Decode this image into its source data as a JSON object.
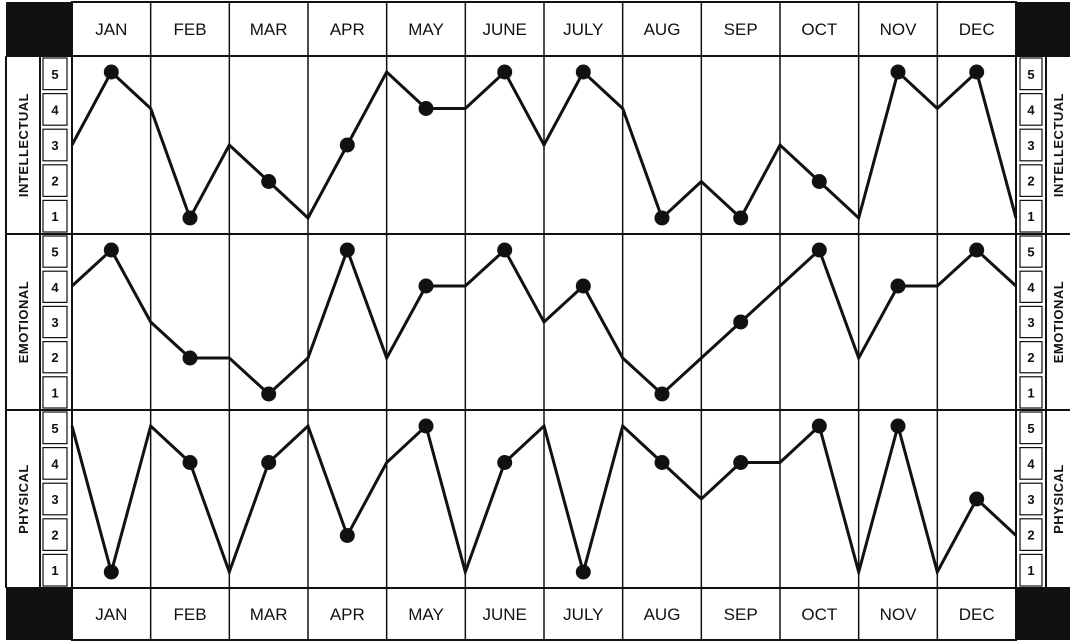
{
  "chart_data": {
    "type": "line",
    "months": [
      "JAN",
      "FEB",
      "MAR",
      "APR",
      "MAY",
      "JUNE",
      "JULY",
      "AUG",
      "SEP",
      "OCT",
      "NOV",
      "DEC"
    ],
    "x_axis": "month position, 0 = left edge of JAN, 12 = right edge of DEC",
    "yticks": [
      "1",
      "2",
      "3",
      "4",
      "5"
    ],
    "ylim": [
      1,
      5
    ],
    "grid": true,
    "series": [
      {
        "name": "INTELLECTUAL",
        "points": [
          [
            0,
            3
          ],
          [
            0.5,
            5
          ],
          [
            1,
            4
          ],
          [
            1.5,
            1
          ],
          [
            2,
            3
          ],
          [
            2.5,
            2
          ],
          [
            3,
            1
          ],
          [
            3.5,
            3
          ],
          [
            4,
            5
          ],
          [
            4.5,
            4
          ],
          [
            5,
            4
          ],
          [
            5.5,
            5
          ],
          [
            6,
            3
          ],
          [
            6.5,
            5
          ],
          [
            7,
            4
          ],
          [
            7.5,
            1
          ],
          [
            8,
            2
          ],
          [
            8.5,
            1
          ],
          [
            9,
            3
          ],
          [
            9.5,
            2
          ],
          [
            10,
            1
          ],
          [
            10.5,
            5
          ],
          [
            11,
            4
          ],
          [
            11.5,
            5
          ],
          [
            12,
            1
          ]
        ],
        "markers": [
          [
            0.5,
            5
          ],
          [
            1.5,
            1
          ],
          [
            2.5,
            2
          ],
          [
            3.5,
            3
          ],
          [
            4.5,
            4
          ],
          [
            5.5,
            5
          ],
          [
            6.5,
            5
          ],
          [
            7.5,
            1
          ],
          [
            8.5,
            1
          ],
          [
            9.5,
            2
          ],
          [
            10.5,
            5
          ],
          [
            11.5,
            5
          ]
        ]
      },
      {
        "name": "EMOTIONAL",
        "points": [
          [
            0,
            4
          ],
          [
            0.5,
            5
          ],
          [
            1,
            3
          ],
          [
            1.5,
            2
          ],
          [
            2,
            2
          ],
          [
            2.5,
            1
          ],
          [
            3,
            2
          ],
          [
            3.5,
            5
          ],
          [
            4,
            2
          ],
          [
            4.5,
            4
          ],
          [
            5,
            4
          ],
          [
            5.5,
            5
          ],
          [
            6,
            3
          ],
          [
            6.5,
            4
          ],
          [
            7,
            2
          ],
          [
            7.5,
            1
          ],
          [
            8,
            2
          ],
          [
            8.5,
            3
          ],
          [
            9,
            4
          ],
          [
            9.5,
            5
          ],
          [
            10,
            2
          ],
          [
            10.5,
            4
          ],
          [
            11,
            4
          ],
          [
            11.5,
            5
          ],
          [
            12,
            4
          ]
        ],
        "markers": [
          [
            0.5,
            5
          ],
          [
            1.5,
            2
          ],
          [
            2.5,
            1
          ],
          [
            3.5,
            5
          ],
          [
            4.5,
            4
          ],
          [
            5.5,
            5
          ],
          [
            6.5,
            4
          ],
          [
            7.5,
            1
          ],
          [
            8.5,
            3
          ],
          [
            9.5,
            5
          ],
          [
            10.5,
            4
          ],
          [
            11.5,
            5
          ]
        ]
      },
      {
        "name": "PHYSICAL",
        "points": [
          [
            0,
            5
          ],
          [
            0.5,
            1
          ],
          [
            1,
            5
          ],
          [
            1.5,
            4
          ],
          [
            2,
            1
          ],
          [
            2.5,
            4
          ],
          [
            3,
            5
          ],
          [
            3.5,
            2
          ],
          [
            4,
            4
          ],
          [
            4.5,
            5
          ],
          [
            5,
            1
          ],
          [
            5.5,
            4
          ],
          [
            6,
            5
          ],
          [
            6.5,
            1
          ],
          [
            7,
            5
          ],
          [
            7.5,
            4
          ],
          [
            8,
            3
          ],
          [
            8.5,
            4
          ],
          [
            9,
            4
          ],
          [
            9.5,
            5
          ],
          [
            10,
            1
          ],
          [
            10.5,
            5
          ],
          [
            11,
            1
          ],
          [
            11.5,
            3
          ],
          [
            12,
            2
          ]
        ],
        "markers": [
          [
            0.5,
            1
          ],
          [
            1.5,
            4
          ],
          [
            2.5,
            4
          ],
          [
            3.5,
            2
          ],
          [
            4.5,
            5
          ],
          [
            5.5,
            4
          ],
          [
            6.5,
            1
          ],
          [
            7.5,
            4
          ],
          [
            8.5,
            4
          ],
          [
            9.5,
            5
          ],
          [
            10.5,
            5
          ],
          [
            11.5,
            3
          ]
        ]
      }
    ]
  },
  "colors": {
    "ink": "#111111",
    "paper": "#ffffff",
    "block": "#111111"
  }
}
